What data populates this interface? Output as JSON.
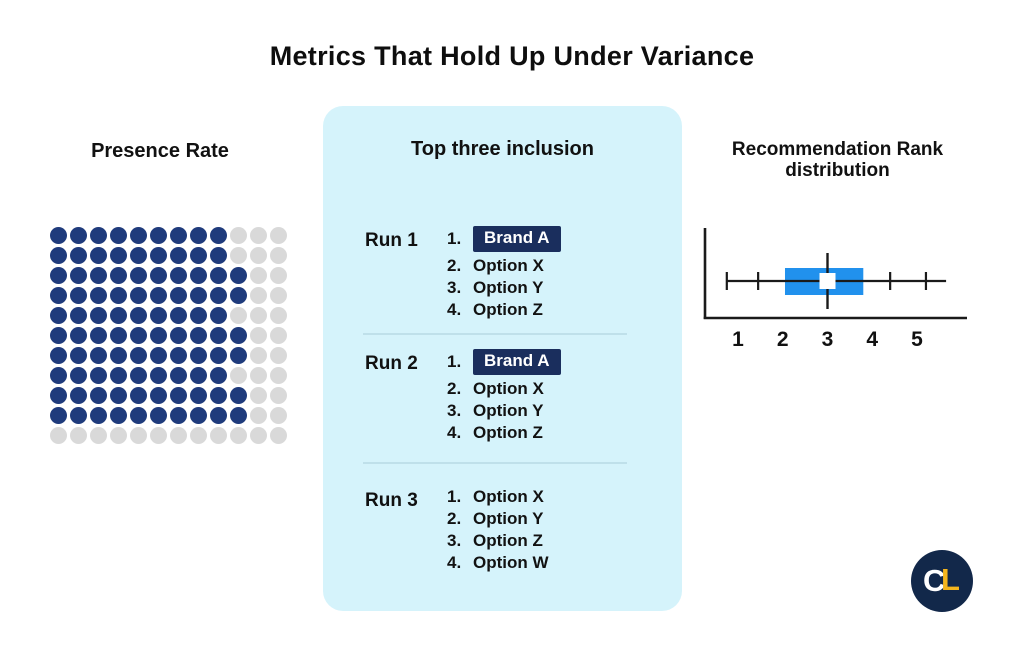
{
  "title": "Metrics That Hold Up Under Variance",
  "colors": {
    "panel_bg": "#D5F3FB",
    "dot_filled": "#1F3B7C",
    "dot_empty": "#D9D9D9",
    "highlight_bg": "#1A2E5D",
    "highlight_text": "#FFFFFF",
    "box_fill": "#2191ED",
    "axis": "#1A1A1A",
    "divider": "#BFE0EA",
    "logo_bg": "#12284A",
    "logo_c": "#FFFFFF",
    "logo_l": "#F4B51D"
  },
  "panels": {
    "presence": {
      "title": "Presence Rate"
    },
    "top_three": {
      "title": "Top three inclusion"
    },
    "rank": {
      "title_line1": "Recommendation Rank",
      "title_line2": "distribution"
    }
  },
  "logo": {
    "letter_c": "C",
    "letter_l": "L"
  },
  "chart_data": [
    {
      "type": "waffle",
      "title": "Presence Rate",
      "columns": 12,
      "rows": 11,
      "filled_per_row": [
        9,
        9,
        10,
        10,
        9,
        10,
        10,
        9,
        10,
        10,
        0
      ],
      "filled_total": 96,
      "total_dots": 132,
      "filled_color": "#1F3B7C",
      "empty_color": "#D9D9D9"
    },
    {
      "type": "table",
      "title": "Top three inclusion",
      "groups": [
        {
          "label": "Run 1",
          "ranking": [
            {
              "rank": "1.",
              "text": "Brand A",
              "highlight": true
            },
            {
              "rank": "2.",
              "text": "Option X",
              "highlight": false
            },
            {
              "rank": "3.",
              "text": "Option Y",
              "highlight": false
            },
            {
              "rank": "4.",
              "text": "Option Z",
              "highlight": false
            }
          ]
        },
        {
          "label": "Run 2",
          "ranking": [
            {
              "rank": "1.",
              "text": "Brand A",
              "highlight": true
            },
            {
              "rank": "2.",
              "text": "Option X",
              "highlight": false
            },
            {
              "rank": "3.",
              "text": "Option Y",
              "highlight": false
            },
            {
              "rank": "4.",
              "text": "Option Z",
              "highlight": false
            }
          ]
        },
        {
          "label": "Run 3",
          "ranking": [
            {
              "rank": "1.",
              "text": "Option X",
              "highlight": false
            },
            {
              "rank": "2.",
              "text": "Option Y",
              "highlight": false
            },
            {
              "rank": "3.",
              "text": "Option Z",
              "highlight": false
            },
            {
              "rank": "4.",
              "text": "Option W",
              "highlight": false
            }
          ]
        }
      ]
    },
    {
      "type": "boxplot",
      "title": "Recommendation Rank distribution",
      "orientation": "horizontal",
      "x_ticks": [
        "1",
        "2",
        "3",
        "4",
        "5"
      ],
      "x_range": [
        0.5,
        5.9
      ],
      "whisker_low": 0.75,
      "whisker_high": 5.65,
      "q1": 2.05,
      "q3": 3.8,
      "median": 3,
      "whisker_tick_marks": [
        0.75,
        1.45,
        4.4,
        5.2
      ],
      "box_color": "#2191ED",
      "median_marker": "white square",
      "grid": false,
      "legend": false
    }
  ]
}
